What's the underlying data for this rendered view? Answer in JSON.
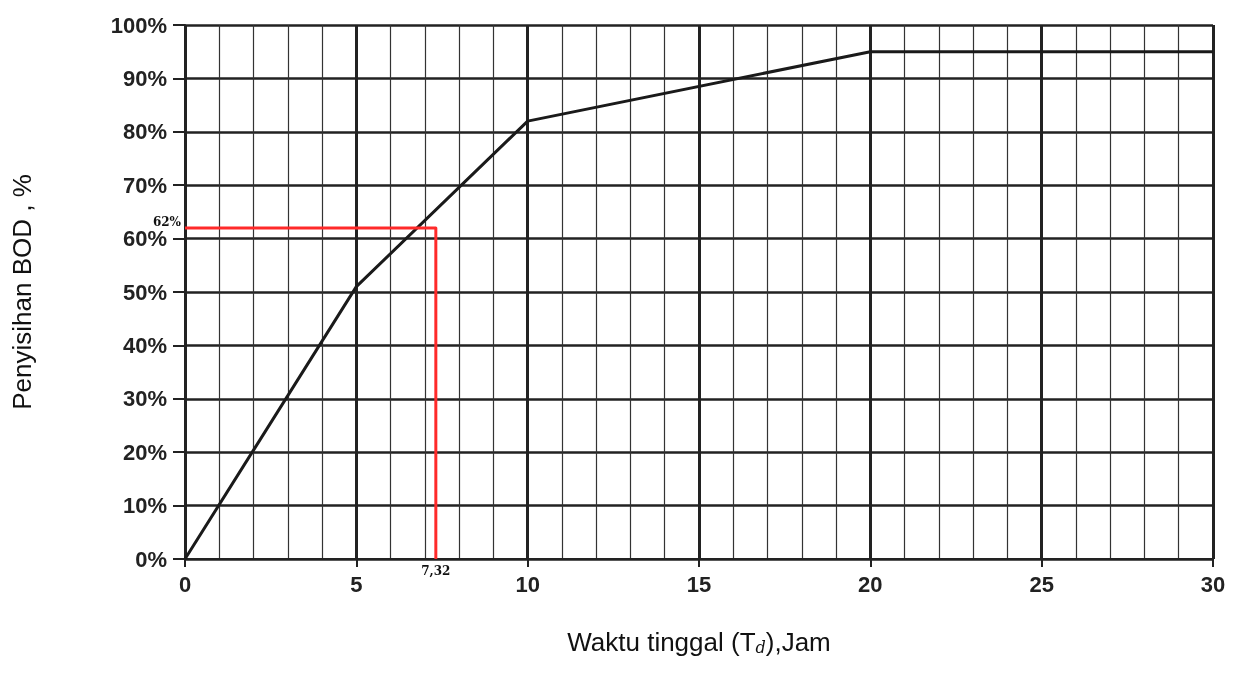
{
  "chart_data": {
    "type": "line",
    "xlabel": "Waktu tinggal (T$_{d}$),Jam",
    "ylabel": "Penyisihan BOD , %",
    "series": [
      {
        "color": "#1a1a1a",
        "x": [
          0,
          5,
          10,
          20,
          30
        ],
        "values": [
          0,
          51,
          82,
          95,
          95
        ]
      },
      {
        "color": "#ff2a2a",
        "x": [
          0,
          7.32,
          7.32
        ],
        "values": [
          62,
          62,
          0
        ]
      }
    ],
    "annotations": [
      {
        "text": "62%",
        "x": 0,
        "y": 62
      },
      {
        "text": "7,32",
        "x": 7.32,
        "y": 0
      }
    ],
    "xlim": [
      0,
      30
    ],
    "xticks": [
      0,
      5,
      10,
      15,
      20,
      25,
      30
    ],
    "ylim": [
      0,
      100
    ],
    "yticks": [
      {
        "value": 0,
        "label": "0%"
      },
      {
        "value": 10,
        "label": "10%"
      },
      {
        "value": 20,
        "label": "20%"
      },
      {
        "value": 30,
        "label": "30%"
      },
      {
        "value": 40,
        "label": "40%"
      },
      {
        "value": 50,
        "label": "50%"
      },
      {
        "value": 60,
        "label": "60%"
      },
      {
        "value": 70,
        "label": "70%"
      },
      {
        "value": 80,
        "label": "80%"
      },
      {
        "value": 90,
        "label": "90%"
      },
      {
        "value": 100,
        "label": "100%"
      }
    ],
    "grid": true,
    "marker": "none",
    "line_style": "solid"
  }
}
